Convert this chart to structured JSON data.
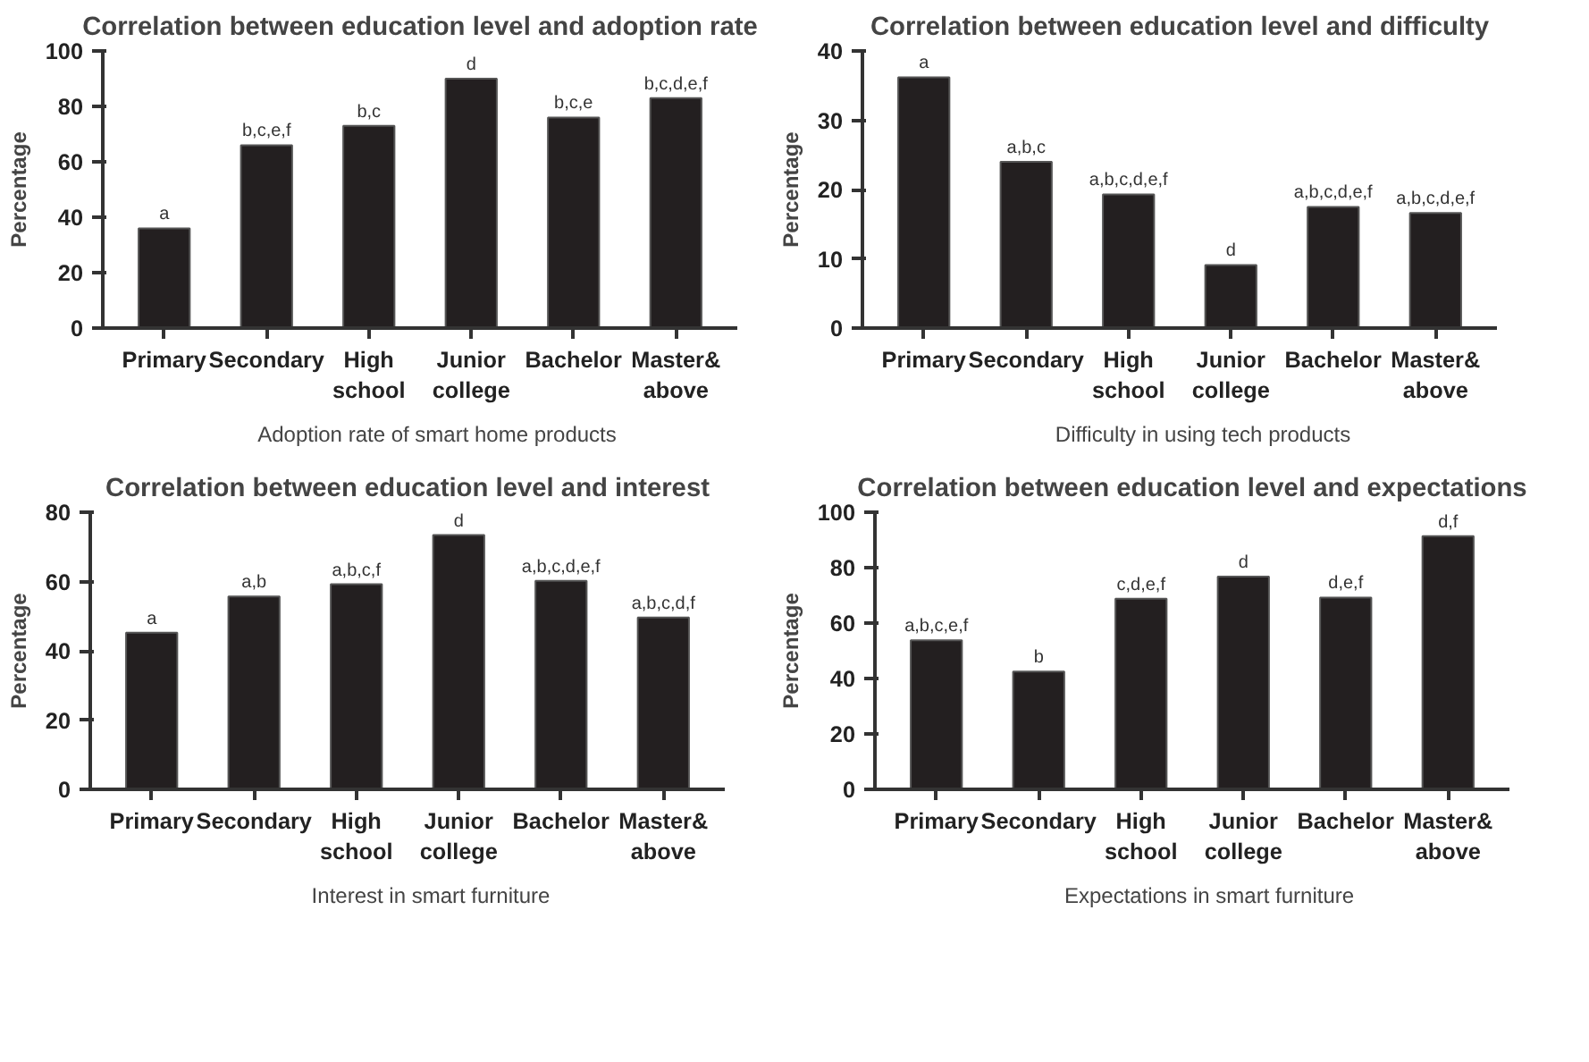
{
  "chart_data": [
    {
      "type": "bar",
      "title": "Correlation between education level and adoption rate",
      "ylabel": "Percentage",
      "categories": [
        "Primary",
        "Secondary",
        "High school",
        "Junior college",
        "Bachelor",
        "Master& above"
      ],
      "series": [
        {
          "name": "Adoption rate of smart home products",
          "color": "#231f20",
          "values": [
            36,
            66,
            73,
            90,
            76,
            83
          ]
        }
      ],
      "ylim": [
        0,
        100
      ],
      "yticks": [
        0,
        20,
        40,
        60,
        80,
        100
      ],
      "grid": false,
      "legend": "bottom",
      "annotations": [
        {
          "text": "a",
          "x": "Primary",
          "y": 36
        },
        {
          "text": "b,c,e,f",
          "x": "Secondary",
          "y": 66
        },
        {
          "text": "b,c",
          "x": "High school",
          "y": 73
        },
        {
          "text": "d",
          "x": "Junior college",
          "y": 90
        },
        {
          "text": "b,c,e",
          "x": "Bachelor",
          "y": 76
        },
        {
          "text": "b,c,d,e,f",
          "x": "Master& above",
          "y": 83
        }
      ]
    },
    {
      "type": "bar",
      "title": "Correlation between education level and difficulty",
      "ylabel": "Percentage",
      "categories": [
        "Primary",
        "Secondary",
        "High school",
        "Junior college",
        "Bachelor",
        "Master& above"
      ],
      "series": [
        {
          "name": "Difficulty in using tech products",
          "color": "#231f20",
          "values": [
            36.2,
            24.0,
            19.3,
            9.1,
            17.5,
            16.6
          ]
        }
      ],
      "ylim": [
        0,
        40
      ],
      "yticks": [
        0,
        10,
        20,
        30,
        40
      ],
      "grid": false,
      "legend": "bottom",
      "annotations": [
        {
          "text": "a",
          "x": "Primary",
          "y": 36.2
        },
        {
          "text": "a,b,c",
          "x": "Secondary",
          "y": 24.0
        },
        {
          "text": "a,b,c,d,e,f",
          "x": "High school",
          "y": 19.3
        },
        {
          "text": "d",
          "x": "Junior college",
          "y": 9.1
        },
        {
          "text": "a,b,c,d,e,f",
          "x": "Bachelor",
          "y": 17.5
        },
        {
          "text": "a,b,c,d,e,f",
          "x": "Master& above",
          "y": 16.6
        }
      ]
    },
    {
      "type": "bar",
      "title": "Correlation between education level and interest",
      "ylabel": "Percentage",
      "categories": [
        "Primary",
        "Secondary",
        "High school",
        "Junior college",
        "Bachelor",
        "Master& above"
      ],
      "series": [
        {
          "name": "Interest in smart furniture",
          "color": "#231f20",
          "values": [
            45.2,
            55.7,
            59.2,
            73.4,
            60.2,
            49.6
          ]
        }
      ],
      "ylim": [
        0,
        80
      ],
      "yticks": [
        0,
        20,
        40,
        60,
        80
      ],
      "grid": false,
      "legend": "bottom",
      "annotations": [
        {
          "text": "a",
          "x": "Primary",
          "y": 45.2
        },
        {
          "text": "a,b",
          "x": "Secondary",
          "y": 55.7
        },
        {
          "text": "a,b,c,f",
          "x": "High school",
          "y": 59.2
        },
        {
          "text": "d",
          "x": "Junior college",
          "y": 73.4
        },
        {
          "text": "a,b,c,d,e,f",
          "x": "Bachelor",
          "y": 60.2
        },
        {
          "text": "a,b,c,d,f",
          "x": "Master& above",
          "y": 49.6
        }
      ]
    },
    {
      "type": "bar",
      "title": "Correlation between education level and expectations",
      "ylabel": "Percentage",
      "categories": [
        "Primary",
        "Secondary",
        "High school",
        "Junior college",
        "Bachelor",
        "Master& above"
      ],
      "series": [
        {
          "name": "Expectations in smart furniture",
          "color": "#231f20",
          "values": [
            53.8,
            42.5,
            68.8,
            76.8,
            69.2,
            91.4
          ]
        }
      ],
      "ylim": [
        0,
        100
      ],
      "yticks": [
        0,
        20,
        40,
        60,
        80,
        100
      ],
      "grid": false,
      "legend": "bottom",
      "annotations": [
        {
          "text": "a,b,c,e,f",
          "x": "Primary",
          "y": 53.8
        },
        {
          "text": "b",
          "x": "Secondary",
          "y": 42.5
        },
        {
          "text": "c,d,e,f",
          "x": "High school",
          "y": 68.8
        },
        {
          "text": "d",
          "x": "Junior college",
          "y": 76.8
        },
        {
          "text": "d,e,f",
          "x": "Bachelor",
          "y": 69.2
        },
        {
          "text": "d,f",
          "x": "Master& above",
          "y": 91.4
        }
      ]
    }
  ]
}
